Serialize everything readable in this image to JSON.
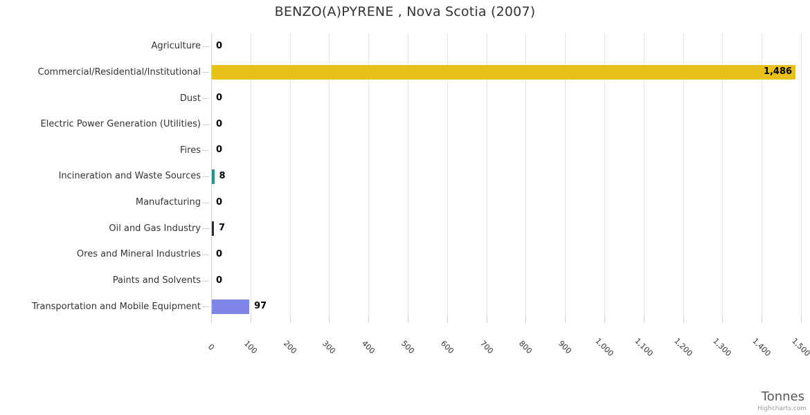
{
  "chart_data": {
    "type": "bar",
    "title": "BENZO(A)PYRENE , Nova Scotia (2007)",
    "xlabel": "Tonnes",
    "ylabel": "",
    "xlim": [
      0,
      1500
    ],
    "tick_interval": 100,
    "grid": true,
    "legend": "none",
    "categories": [
      "Agriculture",
      "Commercial/Residential/Institutional",
      "Dust",
      "Electric Power Generation (Utilities)",
      "Fires",
      "Incineration and Waste Sources",
      "Manufacturing",
      "Oil and Gas Industry",
      "Ores and Mineral Industries",
      "Paints and Solvents",
      "Transportation and Mobile Equipment"
    ],
    "values": [
      0,
      1486,
      0,
      0,
      0,
      8,
      0,
      7,
      0,
      0,
      97
    ],
    "value_labels": [
      "0",
      "1,486",
      "0",
      "0",
      "0",
      "8",
      "0",
      "7",
      "0",
      "0",
      "97"
    ],
    "bar_colors": [
      null,
      "#e8c21b",
      null,
      null,
      null,
      "#2b908f",
      null,
      "#2f3038",
      null,
      null,
      "#8085e9"
    ],
    "x_tick_labels": [
      "0",
      "100",
      "200",
      "300",
      "400",
      "500",
      "600",
      "700",
      "800",
      "900",
      "1,000",
      "1,100",
      "1,200",
      "1,300",
      "1,400",
      "1,500"
    ]
  },
  "credits": "Highcharts.com",
  "colors": {
    "background": "#ffffff",
    "title": "#333333",
    "category_label": "#333333",
    "value_label": "#000000",
    "grid": "#e6e6e6",
    "axis": "#c9cfd6",
    "x_tick_label": "#333333",
    "axis_title": "#555555",
    "credits": "#999999"
  }
}
